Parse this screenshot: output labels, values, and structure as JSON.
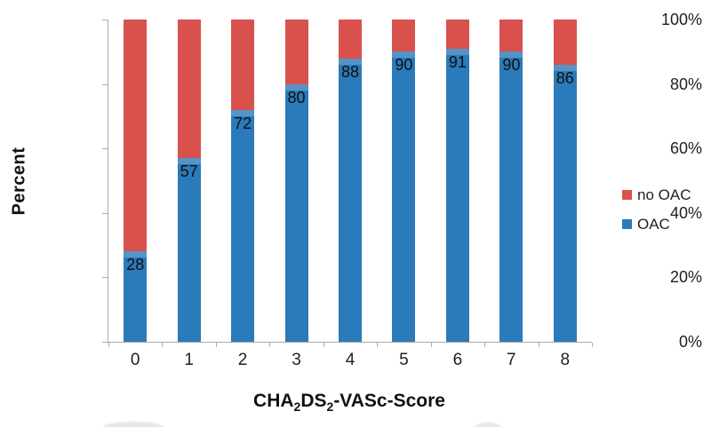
{
  "figure": {
    "y_axis_title": "Percent",
    "x_axis_title": "CHA₂DS₂-VASc-Score",
    "x_axis_title_parts": [
      {
        "text": "CHA"
      },
      {
        "text": "2",
        "sub": true
      },
      {
        "text": "DS"
      },
      {
        "text": "2",
        "sub": true
      },
      {
        "text": "-VASc-Score"
      }
    ]
  },
  "legend": {
    "position": "middle-right",
    "items": [
      {
        "label": "no OAC",
        "color": "#d9514d"
      },
      {
        "label": "OAC",
        "color": "#2b7ab9"
      }
    ]
  },
  "colors": {
    "oac_blue": "#2b7ab9",
    "no_oac_red": "#d9514d",
    "axis_line": "#ababab",
    "text": "#1f1f1f"
  },
  "chart_data": {
    "type": "bar",
    "stacked": true,
    "grid": false,
    "title": "",
    "xlabel": "CHA₂DS₂-VASc-Score",
    "ylabel": "Percent",
    "ylim": [
      0,
      100
    ],
    "y_ticks": [
      0,
      20,
      40,
      60,
      80,
      100
    ],
    "y_tick_labels": [
      "0%",
      "20%",
      "40%",
      "60%",
      "80%",
      "100%"
    ],
    "categories": [
      "0",
      "1",
      "2",
      "3",
      "4",
      "5",
      "6",
      "7",
      "8"
    ],
    "series": [
      {
        "name": "OAC",
        "color": "#2b7ab9",
        "values": [
          28,
          57,
          72,
          80,
          88,
          90,
          91,
          90,
          86
        ],
        "data_labels": true
      },
      {
        "name": "no OAC",
        "color": "#d9514d",
        "values": [
          72,
          43,
          28,
          20,
          12,
          10,
          9,
          10,
          14
        ],
        "data_labels": false
      }
    ],
    "legend_position": "middle-right"
  }
}
